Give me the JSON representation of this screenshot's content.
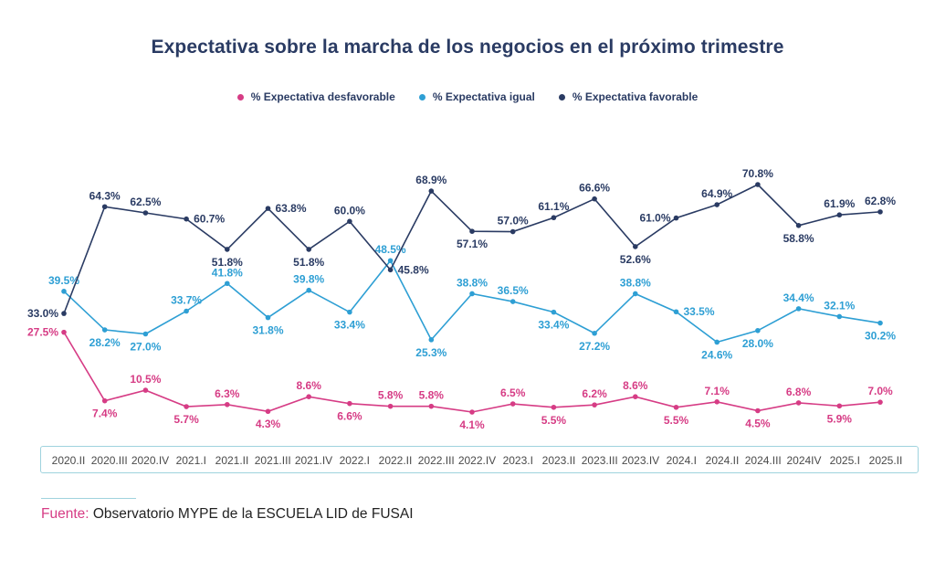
{
  "chart_data": {
    "type": "line",
    "title": "Expectativa sobre la marcha de los negocios en el próximo trimestre",
    "xlabel": "",
    "ylabel": "",
    "ylim": [
      0,
      75
    ],
    "grid": false,
    "legend_position": "top-center",
    "categories": [
      "2020.II",
      "2020.III",
      "2020.IV",
      "2021.I",
      "2021.II",
      "2021.III",
      "2021.IV",
      "2022.I",
      "2022.II",
      "2022.III",
      "2022.IV",
      "2023.I",
      "2023.II",
      "2023.III",
      "2023.IV",
      "2024.I",
      "2024.II",
      "2024.III",
      "2024IV",
      "2025.I",
      "2025.II"
    ],
    "series": [
      {
        "name": "% Expectativa desfavorable",
        "color": "#d63c85",
        "values": [
          27.5,
          7.4,
          10.5,
          5.7,
          6.3,
          4.3,
          8.6,
          6.6,
          5.8,
          5.8,
          4.1,
          6.5,
          5.5,
          6.2,
          8.6,
          5.5,
          7.1,
          4.5,
          6.8,
          5.9,
          7.0
        ],
        "labels": [
          "27.5%",
          "7.4%",
          "10.5%",
          "5.7%",
          "6.3%",
          "4.3%",
          "8.6%",
          "6.6%",
          "5.8%",
          "5.8%",
          "4.1%",
          "6.5%",
          "5.5%",
          "6.2%",
          "8.6%",
          "5.5%",
          "7.1%",
          "4.5%",
          "6.8%",
          "5.9%",
          "7.0%"
        ]
      },
      {
        "name": "% Expectativa igual",
        "color": "#2e9fd4",
        "values": [
          39.5,
          28.2,
          27.0,
          33.7,
          41.8,
          31.8,
          39.8,
          33.4,
          48.5,
          25.3,
          38.8,
          36.5,
          33.4,
          27.2,
          38.8,
          33.5,
          24.6,
          28.0,
          34.4,
          32.1,
          30.2
        ],
        "labels": [
          "39.5%",
          "28.2%",
          "27.0%",
          "33.7%",
          "41.8%",
          "31.8%",
          "39.8%",
          "33.4%",
          "48.5%",
          "25.3%",
          "38.8%",
          "36.5%",
          "33.4%",
          "27.2%",
          "38.8%",
          "33.5%",
          "24.6%",
          "28.0%",
          "34.4%",
          "32.1%",
          "30.2%"
        ]
      },
      {
        "name": "% Expectativa favorable",
        "color": "#2a3b63",
        "values": [
          33.0,
          64.3,
          62.5,
          60.7,
          51.8,
          63.8,
          51.8,
          60.0,
          45.8,
          68.9,
          57.1,
          57.0,
          61.1,
          66.6,
          52.6,
          61.0,
          64.9,
          70.8,
          58.8,
          61.9,
          62.8
        ],
        "labels": [
          "33.0%",
          "64.3%",
          "62.5%",
          "60.7%",
          "51.8%",
          "63.8%",
          "51.8%",
          "60.0%",
          "45.8%",
          "68.9%",
          "57.1%",
          "57.0%",
          "61.1%",
          "66.6%",
          "52.6%",
          "61.0%",
          "64.9%",
          "70.8%",
          "58.8%",
          "61.9%",
          "62.8%"
        ]
      }
    ]
  },
  "legend": [
    {
      "label": "% Expectativa desfavorable",
      "color": "#d63c85"
    },
    {
      "label": "% Expectativa igual",
      "color": "#2e9fd4"
    },
    {
      "label": "% Expectativa favorable",
      "color": "#2a3b63"
    }
  ],
  "source": {
    "label": "Fuente:",
    "text": "Observatorio MYPE de la ESCUELA LID de FUSAI"
  }
}
